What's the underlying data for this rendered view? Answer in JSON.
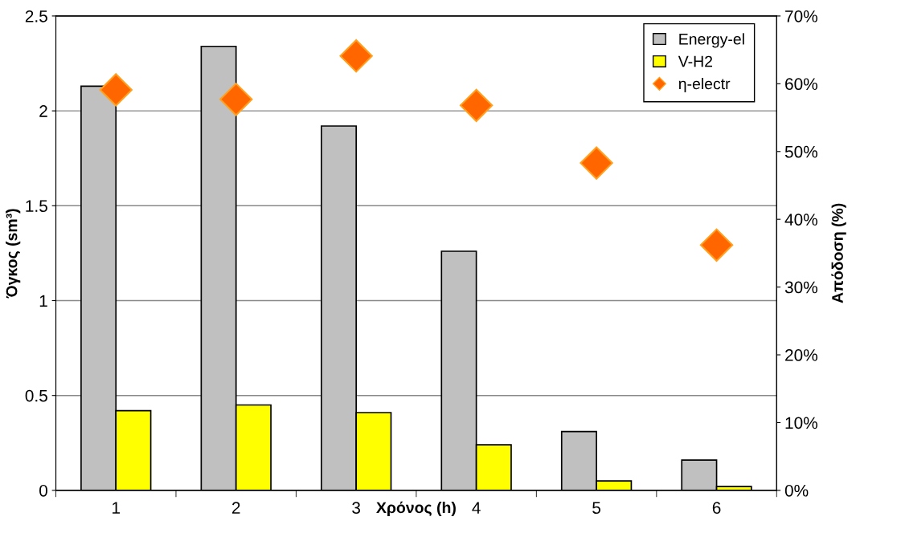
{
  "chart_data": {
    "type": "bar",
    "categories": [
      "1",
      "2",
      "3",
      "4",
      "5",
      "6"
    ],
    "xlabel": "Χρόνος (h)",
    "ylabel": "Όγκος (sm³)",
    "y2label": "Απόδοση (%)",
    "series": [
      {
        "name": "Energy-el",
        "color": "#c0c0c0",
        "values": [
          2.13,
          2.34,
          1.92,
          1.26,
          0.31,
          0.16
        ]
      },
      {
        "name": "V-H2",
        "color": "#ffff00",
        "values": [
          0.42,
          0.45,
          0.41,
          0.24,
          0.05,
          0.02
        ]
      },
      {
        "name": "η-electr",
        "type": "scatter",
        "axis": "y2",
        "color": "#ff6600",
        "marker": "diamond",
        "values": [
          59.1,
          57.7,
          64.1,
          56.8,
          48.3,
          36.2
        ]
      }
    ],
    "ylim": [
      0,
      2.5
    ],
    "yticks": [
      0,
      0.5,
      1,
      1.5,
      2,
      2.5
    ],
    "y2lim": [
      0,
      70
    ],
    "y2ticks": [
      {
        "value": 0,
        "label": "0%"
      },
      {
        "value": 10,
        "label": "10%"
      },
      {
        "value": 20,
        "label": "20%"
      },
      {
        "value": 30,
        "label": "30%"
      },
      {
        "value": 40,
        "label": "40%"
      },
      {
        "value": 50,
        "label": "50%"
      },
      {
        "value": 60,
        "label": "60%"
      },
      {
        "value": 70,
        "label": "70%"
      }
    ],
    "grid": "y",
    "legend": "top right"
  }
}
